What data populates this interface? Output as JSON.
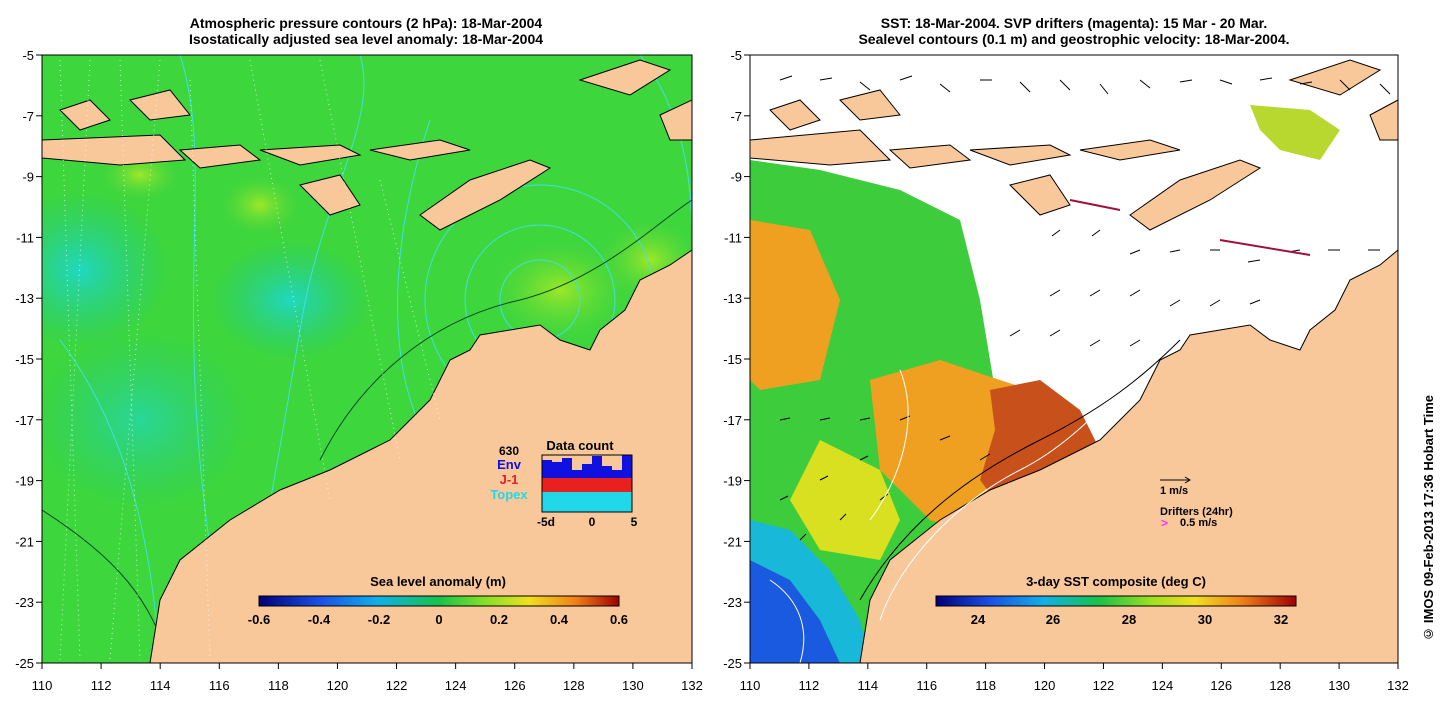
{
  "left_panel": {
    "title_line1": "Atmospheric pressure contours (2 hPa): 18-Mar-2004",
    "title_line2": "Isostatically adjusted sea level anomaly: 18-Mar-2004",
    "colorbar_title": "Sea level anomaly (m)",
    "colorbar_ticks": [
      "-0.6",
      "-0.4",
      "-0.2",
      "0",
      "0.2",
      "0.4",
      "0.6"
    ],
    "inset": {
      "title": "Data count",
      "count": "630",
      "legend": [
        "Env",
        "J-1",
        "Topex"
      ],
      "x_ticks": [
        "-5d",
        "0",
        "5"
      ]
    }
  },
  "right_panel": {
    "title_line1": "SST: 18-Mar-2004. SVP drifters (magenta): 15 Mar - 20 Mar.",
    "title_line2": "Sealevel contours (0.1 m) and geostrophic velocity: 18-Mar-2004.",
    "colorbar_title": "3-day SST composite (deg C)",
    "colorbar_ticks": [
      "24",
      "26",
      "28",
      "30",
      "32"
    ],
    "scale_label": "1 m/s",
    "drifters_label": "Drifters (24hr)",
    "drifters_symbol": ">",
    "drifters_speed": "0.5 m/s"
  },
  "axes": {
    "y_ticks": [
      "-5",
      "-7",
      "-9",
      "-11",
      "-13",
      "-15",
      "-17",
      "-19",
      "-21",
      "-23",
      "-25"
    ],
    "x_ticks": [
      "110",
      "112",
      "114",
      "116",
      "118",
      "120",
      "122",
      "124",
      "126",
      "128",
      "130",
      "132"
    ]
  },
  "credit": "© IMOS 09-Feb-2013 17:36 Hobart Time",
  "colors": {
    "land": "#f9c89a",
    "ocean_green": "#3dd63d",
    "ocean_teal": "#24c98c",
    "sst_orange": "#f0a020",
    "sst_red": "#c8501a",
    "sst_blue": "#1a5ae0",
    "contour_cyan": "#40e0e0",
    "drifter_magenta": "#ff30ff"
  }
}
